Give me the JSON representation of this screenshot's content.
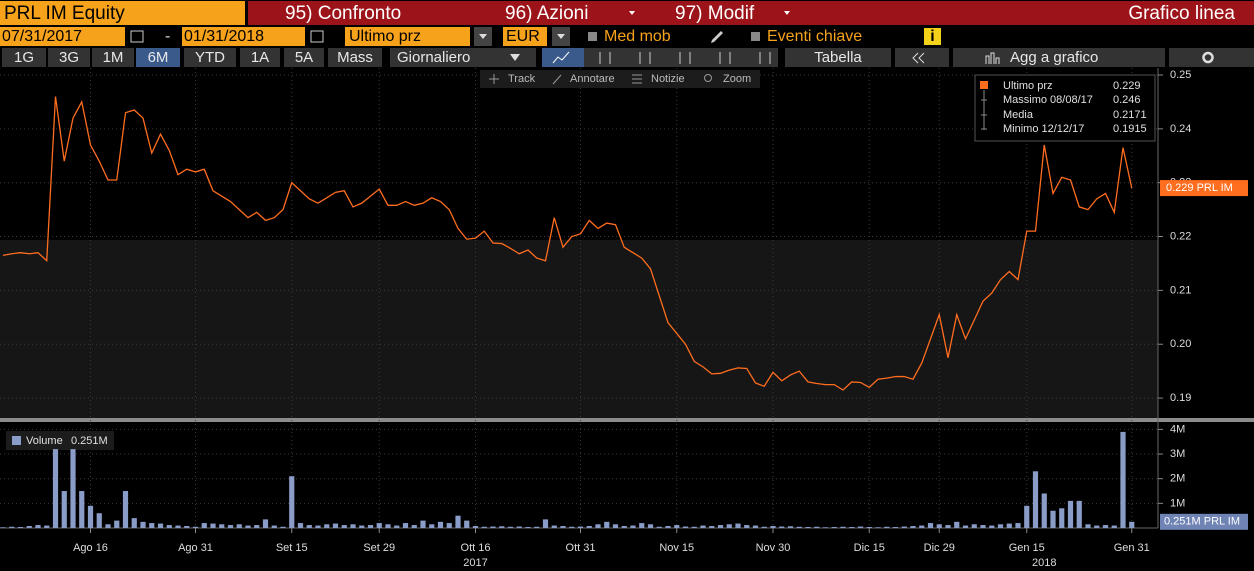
{
  "header": {
    "ticker": "PRL IM Equity",
    "menu": [
      "95) Confronto",
      "96) Azioni",
      "97) Modif"
    ],
    "view": "Grafico linea"
  },
  "controls": {
    "start_date": "07/31/2017",
    "separator": "-",
    "end_date": "01/31/2018",
    "field": "Ultimo prz",
    "currency": "EUR",
    "moving_avg": "Med mob",
    "key_events": "Eventi chiave",
    "info": "i"
  },
  "periods": [
    "1G",
    "3G",
    "1M",
    "6M",
    "YTD",
    "1A",
    "5A",
    "Mass"
  ],
  "frequency": "Giornaliero",
  "table": "Tabella",
  "add_to_chart": "Agg a grafico",
  "chart_tools": [
    "Track",
    "Annotare",
    "Notizie",
    "Zoom"
  ],
  "chart_data": {
    "type": "line",
    "categories": [
      null,
      null,
      null,
      null,
      null,
      null,
      null,
      null,
      null,
      null,
      "Ago 16",
      null,
      null,
      null,
      null,
      null,
      null,
      null,
      null,
      null,
      null,
      null,
      "Ago 31",
      null,
      null,
      null,
      null,
      null,
      null,
      null,
      null,
      null,
      null,
      "Set 15",
      null,
      null,
      null,
      null,
      null,
      null,
      null,
      null,
      null,
      "Set 29",
      null,
      null,
      null,
      null,
      null,
      null,
      null,
      null,
      null,
      null,
      "Ott 16",
      null,
      null,
      null,
      null,
      null,
      null,
      null,
      null,
      null,
      null,
      null,
      "Ott 31",
      null,
      null,
      null,
      null,
      null,
      null,
      null,
      null,
      null,
      null,
      "Nov 15",
      null,
      null,
      null,
      null,
      null,
      null,
      null,
      null,
      null,
      null,
      "Nov 30",
      null,
      null,
      null,
      null,
      null,
      null,
      null,
      null,
      null,
      null,
      "Dic 15",
      null,
      null,
      null,
      null,
      null,
      null,
      null,
      "Dic 29",
      null,
      null,
      null,
      null,
      null,
      null,
      null,
      null,
      null,
      "Gen 15",
      null,
      null,
      null,
      null,
      null,
      null,
      null,
      null,
      null,
      null,
      null,
      "Gen 31"
    ],
    "years": [
      null,
      null,
      null,
      null,
      null,
      null,
      null,
      null,
      null,
      null,
      null,
      null,
      null,
      null,
      null,
      null,
      null,
      null,
      null,
      null,
      null,
      null,
      null,
      null,
      null,
      null,
      null,
      null,
      null,
      null,
      null,
      null,
      null,
      null,
      null,
      null,
      null,
      null,
      null,
      null,
      null,
      null,
      null,
      null,
      null,
      null,
      null,
      null,
      null,
      null,
      null,
      null,
      null,
      null,
      "2017",
      null,
      null,
      null,
      null,
      null,
      null,
      null,
      null,
      null,
      null,
      null,
      null,
      null,
      null,
      null,
      null,
      null,
      null,
      null,
      null,
      null,
      null,
      null,
      null,
      null,
      null,
      null,
      null,
      null,
      null,
      null,
      null,
      null,
      null,
      null,
      null,
      null,
      null,
      null,
      null,
      null,
      null,
      null,
      null,
      null,
      null,
      null,
      null,
      null,
      null,
      null,
      null,
      null,
      null,
      null,
      null,
      null,
      null,
      null,
      null,
      null,
      null,
      null,
      null,
      "2018",
      null,
      null,
      null,
      null,
      null,
      null,
      null,
      null,
      null,
      null
    ],
    "series": [
      {
        "name": "Ultimo prz",
        "color": "#ff6d1f",
        "legend_value": 0.229,
        "values": [
          0.2165,
          0.2168,
          0.217,
          0.2168,
          0.217,
          0.2155,
          0.246,
          0.234,
          0.242,
          0.245,
          0.237,
          0.234,
          0.2305,
          0.2305,
          0.243,
          0.2435,
          0.242,
          0.2355,
          0.239,
          0.236,
          0.2315,
          0.2325,
          0.232,
          0.2325,
          0.2285,
          0.2275,
          0.2265,
          0.225,
          0.2235,
          0.2245,
          0.223,
          0.2235,
          0.225,
          0.23,
          0.2285,
          0.227,
          0.2262,
          0.2272,
          0.2282,
          0.2285,
          0.2255,
          0.2262,
          0.2275,
          0.2288,
          0.2258,
          0.2258,
          0.2265,
          0.2258,
          0.2262,
          0.2272,
          0.2265,
          0.225,
          0.2215,
          0.2195,
          0.2197,
          0.221,
          0.2188,
          0.2187,
          0.2178,
          0.2168,
          0.2175,
          0.216,
          0.2155,
          0.2235,
          0.218,
          0.22,
          0.2205,
          0.223,
          0.2215,
          0.2225,
          0.2222,
          0.218,
          0.217,
          0.216,
          0.214,
          0.209,
          0.204,
          0.202,
          0.2,
          0.1968,
          0.1958,
          0.1945,
          0.1946,
          0.1952,
          0.1956,
          0.1955,
          0.1928,
          0.1922,
          0.1948,
          0.1932,
          0.1943,
          0.195,
          0.193,
          0.1927,
          0.1925,
          0.1925,
          0.1915,
          0.193,
          0.1929,
          0.192,
          0.1935,
          0.1937,
          0.194,
          0.194,
          0.1935,
          0.1965,
          0.201,
          0.2055,
          0.1975,
          0.2055,
          0.201,
          0.2045,
          0.208,
          0.2095,
          0.212,
          0.2135,
          0.212,
          0.221,
          0.221,
          0.237,
          0.228,
          0.231,
          0.2305,
          0.2255,
          0.225,
          0.227,
          0.228,
          0.2245,
          0.2365,
          0.229
        ]
      },
      {
        "name": "Volume",
        "type": "bar",
        "axis": "y2",
        "color": "#8a9cc8",
        "legend_value": "0.251M",
        "values": [
          30000,
          50000,
          40000,
          80000,
          120000,
          100000,
          3200000,
          1500000,
          3200000,
          1500000,
          900000,
          600000,
          150000,
          300000,
          1500000,
          400000,
          250000,
          200000,
          180000,
          120000,
          100000,
          80000,
          50000,
          200000,
          180000,
          150000,
          120000,
          150000,
          100000,
          120000,
          350000,
          100000,
          50000,
          2100000,
          200000,
          120000,
          100000,
          150000,
          180000,
          120000,
          150000,
          100000,
          120000,
          200000,
          150000,
          100000,
          200000,
          120000,
          300000,
          150000,
          250000,
          200000,
          500000,
          300000,
          80000,
          50000,
          60000,
          70000,
          50000,
          60000,
          40000,
          50000,
          350000,
          100000,
          80000,
          50000,
          60000,
          80000,
          150000,
          250000,
          150000,
          80000,
          100000,
          200000,
          150000,
          50000,
          80000,
          120000,
          60000,
          50000,
          100000,
          80000,
          120000,
          150000,
          180000,
          120000,
          100000,
          50000,
          80000,
          60000,
          70000,
          50000,
          40000,
          50000,
          30000,
          40000,
          50000,
          40000,
          60000,
          40000,
          30000,
          50000,
          40000,
          60000,
          80000,
          100000,
          200000,
          150000,
          120000,
          250000,
          100000,
          150000,
          120000,
          100000,
          150000,
          180000,
          200000,
          900000,
          2300000,
          1400000,
          700000,
          800000,
          1100000,
          1100000,
          150000,
          100000,
          120000,
          100000,
          3900000,
          251000
        ]
      }
    ],
    "stats": [
      {
        "label": "Massimo 08/08/17",
        "value": 0.246
      },
      {
        "label": "Media",
        "value": 0.2171
      },
      {
        "label": "Minimo 12/12/17",
        "value": 0.1915
      }
    ],
    "price_tag": "0.229 PRL IM",
    "volume_tag": "0.251M PRL IM",
    "ylim": [
      0.1863,
      0.2513
    ],
    "yticks": [
      0.19,
      {
        "value": 0.2,
        "label": "0.20"
      },
      0.21,
      0.22,
      0.23,
      0.24,
      0.25
    ],
    "y2lim": [
      0,
      4300000
    ],
    "y2ticks": [
      {
        "value": 1000000,
        "label": "1M"
      },
      {
        "value": 2000000,
        "label": "2M"
      },
      {
        "value": 3000000,
        "label": "3M"
      },
      {
        "value": 4000000,
        "label": "4M"
      }
    ],
    "grid": true
  }
}
